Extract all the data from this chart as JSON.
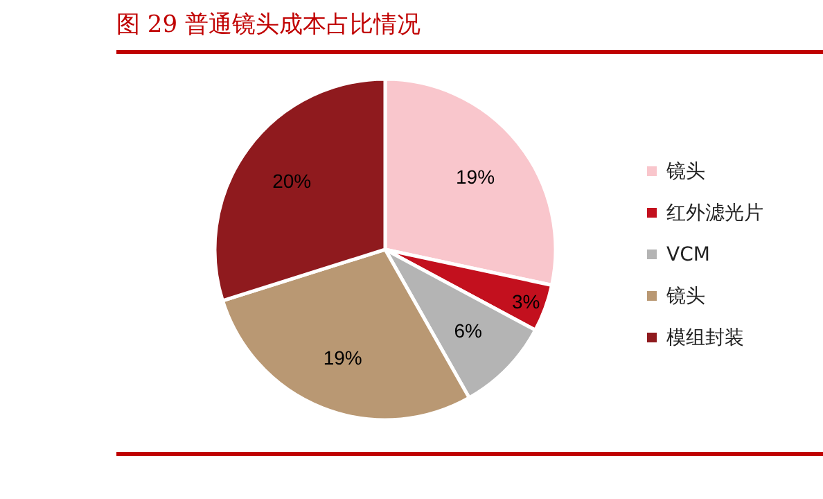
{
  "chart_data": {
    "type": "pie",
    "title": "图 29  普通镜头成本占比情况",
    "categories": [
      "镜头",
      "红外滤光片",
      "VCM",
      "镜头",
      "模组封装"
    ],
    "values": [
      19,
      3,
      6,
      19,
      20
    ],
    "colors": [
      "#f9c6cc",
      "#c3101e",
      "#b4b4b4",
      "#b99873",
      "#8f1a1e"
    ],
    "value_labels": [
      "19%",
      "3%",
      "6%",
      "19%",
      "20%"
    ],
    "legend": "right"
  }
}
